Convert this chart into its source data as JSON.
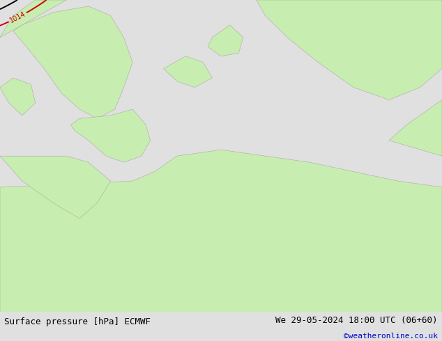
{
  "title_left": "Surface pressure [hPa] ECMWF",
  "title_right": "We 29-05-2024 18:00 UTC (06+60)",
  "credit": "©weatheronline.co.uk",
  "bg_color": "#e0e0e0",
  "land_color": "#c8edb0",
  "sea_color": "#e0e0e0",
  "footer_bg": "#d8d8d8",
  "blue_line_color": "#0000cc",
  "black_line_color": "#000000",
  "red_line_color": "#cc0000",
  "label_fontsize": 7,
  "footer_fontsize": 9,
  "credit_fontsize": 8,
  "credit_color": "#0000cc"
}
